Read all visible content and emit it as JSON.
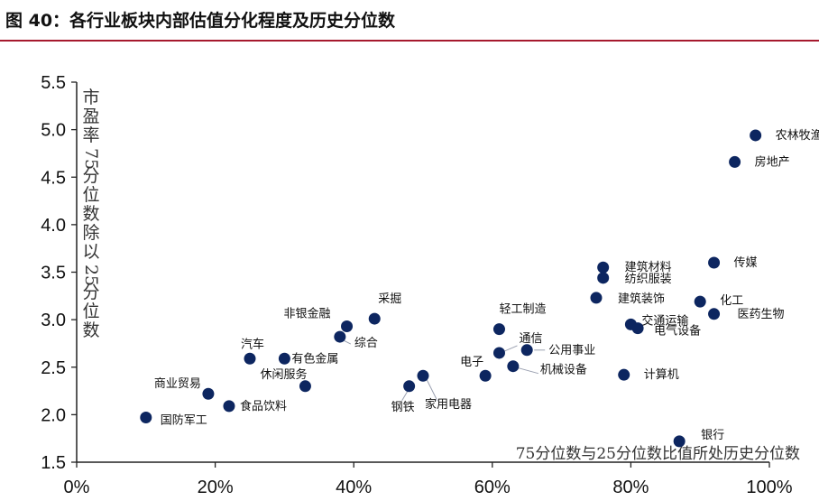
{
  "title": "图 40：各行业板块内部估值分化程度及历史分位数",
  "chart_data": {
    "type": "scatter",
    "title": "图 40：各行业板块内部估值分化程度及历史分位数",
    "xlabel": "75分位数与25分位数比值所处历史分位数",
    "ylabel": "市盈率75分位数除以25分位数",
    "xlim": [
      0,
      1.0
    ],
    "ylim": [
      1.5,
      5.5
    ],
    "x_ticks": [
      "0%",
      "20%",
      "40%",
      "60%",
      "80%",
      "100%"
    ],
    "y_ticks": [
      "1.5",
      "2.0",
      "2.5",
      "3.0",
      "3.5",
      "4.0",
      "4.5",
      "5.0",
      "5.5"
    ],
    "grid": false,
    "marker_color": "#0d2660",
    "points": [
      {
        "label": "农林牧渔",
        "x": 0.98,
        "y": 4.94
      },
      {
        "label": "房地产",
        "x": 0.95,
        "y": 4.66
      },
      {
        "label": "传媒",
        "x": 0.92,
        "y": 3.6
      },
      {
        "label": "建筑材料",
        "x": 0.76,
        "y": 3.55
      },
      {
        "label": "纺织服装",
        "x": 0.76,
        "y": 3.44
      },
      {
        "label": "建筑装饰",
        "x": 0.75,
        "y": 3.23
      },
      {
        "label": "化工",
        "x": 0.9,
        "y": 3.19
      },
      {
        "label": "医药生物",
        "x": 0.92,
        "y": 3.06
      },
      {
        "label": "交通运输",
        "x": 0.8,
        "y": 2.95
      },
      {
        "label": "电气设备",
        "x": 0.81,
        "y": 2.91
      },
      {
        "label": "计算机",
        "x": 0.79,
        "y": 2.42
      },
      {
        "label": "银行",
        "x": 0.87,
        "y": 1.72
      },
      {
        "label": "轻工制造",
        "x": 0.61,
        "y": 2.9
      },
      {
        "label": "通信",
        "x": 0.61,
        "y": 2.65
      },
      {
        "label": "公用事业",
        "x": 0.65,
        "y": 2.68
      },
      {
        "label": "机械设备",
        "x": 0.63,
        "y": 2.51
      },
      {
        "label": "电子",
        "x": 0.59,
        "y": 2.41
      },
      {
        "label": "家用电器",
        "x": 0.5,
        "y": 2.41
      },
      {
        "label": "钢铁",
        "x": 0.48,
        "y": 2.3
      },
      {
        "label": "采掘",
        "x": 0.43,
        "y": 3.01
      },
      {
        "label": "非银金融",
        "x": 0.39,
        "y": 2.93
      },
      {
        "label": "综合",
        "x": 0.38,
        "y": 2.82
      },
      {
        "label": "汽车",
        "x": 0.25,
        "y": 2.59
      },
      {
        "label": "有色金属",
        "x": 0.3,
        "y": 2.59
      },
      {
        "label": "休闲服务",
        "x": 0.33,
        "y": 2.3
      },
      {
        "label": "商业贸易",
        "x": 0.19,
        "y": 2.22
      },
      {
        "label": "食品饮料",
        "x": 0.22,
        "y": 2.09
      },
      {
        "label": "国防军工",
        "x": 0.1,
        "y": 1.97
      }
    ]
  }
}
